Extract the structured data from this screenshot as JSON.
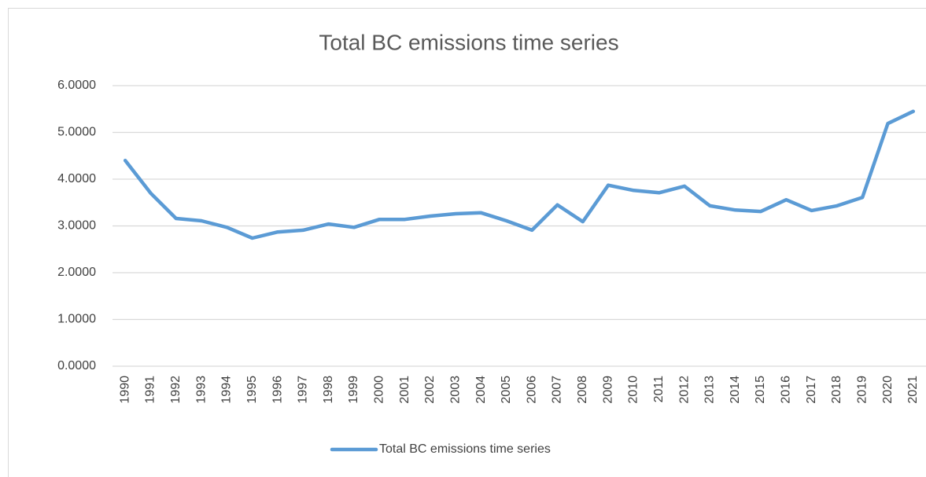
{
  "chart_data": {
    "type": "line",
    "title": "Total BC emissions time series",
    "categories": [
      "1990",
      "1991",
      "1992",
      "1993",
      "1994",
      "1995",
      "1996",
      "1997",
      "1998",
      "1999",
      "2000",
      "2001",
      "2002",
      "2003",
      "2004",
      "2005",
      "2006",
      "2007",
      "2008",
      "2009",
      "2010",
      "2011",
      "2012",
      "2013",
      "2014",
      "2015",
      "2016",
      "2017",
      "2018",
      "2019",
      "2020",
      "2021"
    ],
    "series": [
      {
        "name": "Total BC emissions time series",
        "color": "#5b9bd5",
        "values": [
          4.4,
          3.7,
          3.16,
          3.11,
          2.97,
          2.74,
          2.87,
          2.91,
          3.04,
          2.97,
          3.14,
          3.14,
          3.21,
          3.26,
          3.28,
          3.11,
          2.91,
          3.45,
          3.09,
          3.87,
          3.76,
          3.71,
          3.85,
          3.43,
          3.34,
          3.31,
          3.56,
          3.33,
          3.43,
          3.61,
          5.19,
          5.45
        ]
      }
    ],
    "ylim": [
      0,
      6
    ],
    "yticks": [
      {
        "value": 0,
        "label": "0.0000"
      },
      {
        "value": 1,
        "label": "1.0000"
      },
      {
        "value": 2,
        "label": "2.0000"
      },
      {
        "value": 3,
        "label": "3.0000"
      },
      {
        "value": 4,
        "label": "4.0000"
      },
      {
        "value": 5,
        "label": "5.0000"
      },
      {
        "value": 6,
        "label": "6.0000"
      }
    ],
    "grid": true,
    "legend": "bottom"
  }
}
